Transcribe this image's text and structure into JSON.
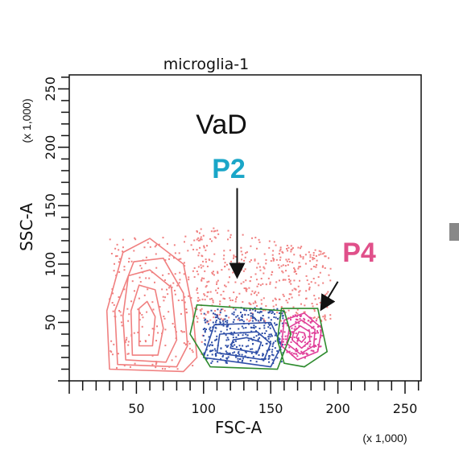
{
  "chart_data": {
    "type": "scatter",
    "title": "microglia-1",
    "xlabel": "FSC-A",
    "ylabel": "SSC-A",
    "x_scale_note": "(x 1,000)",
    "y_scale_note": "(x 1,000)",
    "xlim": [
      0,
      262
    ],
    "ylim": [
      0,
      262
    ],
    "x_ticks": [
      50,
      100,
      150,
      200,
      250
    ],
    "y_ticks": [
      50,
      100,
      150,
      200,
      250
    ],
    "grid": false,
    "annotations": {
      "condition": "VaD",
      "p2": "P2",
      "p4": "P4"
    },
    "colors": {
      "main": "#f08080",
      "p2": "#2f4fa8",
      "p4": "#e0409a",
      "gate": "#2e8b2e",
      "p2_label": "#1aa6c8",
      "p4_label": "#e0508a"
    },
    "populations": [
      {
        "name": "",
        "color": "#f08080",
        "center": [
          55,
          55
        ],
        "contours": [
          [
            [
              30,
              10
            ],
            [
              85,
              8
            ],
            [
              95,
              20
            ],
            [
              92,
              60
            ],
            [
              85,
              100
            ],
            [
              60,
              122
            ],
            [
              40,
              110
            ],
            [
              28,
              60
            ]
          ],
          [
            [
              36,
              14
            ],
            [
              80,
              12
            ],
            [
              88,
              30
            ],
            [
              85,
              75
            ],
            [
              70,
              105
            ],
            [
              48,
              102
            ],
            [
              34,
              60
            ]
          ],
          [
            [
              42,
              18
            ],
            [
              72,
              16
            ],
            [
              80,
              35
            ],
            [
              76,
              80
            ],
            [
              60,
              95
            ],
            [
              44,
              90
            ],
            [
              40,
              55
            ]
          ],
          [
            [
              47,
              22
            ],
            [
              66,
              22
            ],
            [
              70,
              45
            ],
            [
              64,
              78
            ],
            [
              52,
              82
            ],
            [
              46,
              60
            ]
          ],
          [
            [
              52,
              30
            ],
            [
              62,
              30
            ],
            [
              64,
              55
            ],
            [
              58,
              68
            ],
            [
              52,
              62
            ]
          ]
        ]
      },
      {
        "name": "P2",
        "color": "#2f4fa8",
        "center": [
          140,
          28
        ],
        "contours": [
          [
            [
              100,
              20
            ],
            [
              150,
              12
            ],
            [
              158,
              30
            ],
            [
              150,
              50
            ],
            [
              108,
              48
            ]
          ],
          [
            [
              110,
              24
            ],
            [
              145,
              18
            ],
            [
              150,
              32
            ],
            [
              140,
              42
            ],
            [
              112,
              40
            ]
          ],
          [
            [
              120,
              28
            ],
            [
              140,
              24
            ],
            [
              143,
              33
            ],
            [
              132,
              37
            ],
            [
              122,
              35
            ]
          ]
        ]
      },
      {
        "name": "P4",
        "color": "#e0409a",
        "center": [
          173,
          38
        ],
        "contours": [
          [
            [
              158,
              30
            ],
            [
              170,
              18
            ],
            [
              185,
              25
            ],
            [
              188,
              45
            ],
            [
              175,
              58
            ],
            [
              160,
              52
            ]
          ],
          [
            [
              162,
              32
            ],
            [
              172,
              23
            ],
            [
              182,
              30
            ],
            [
              183,
              44
            ],
            [
              173,
              52
            ],
            [
              164,
              46
            ]
          ],
          [
            [
              166,
              35
            ],
            [
              173,
              28
            ],
            [
              179,
              34
            ],
            [
              179,
              42
            ],
            [
              172,
              47
            ],
            [
              167,
              42
            ]
          ],
          [
            [
              169,
              37
            ],
            [
              173,
              33
            ],
            [
              176,
              37
            ],
            [
              175,
              41
            ],
            [
              171,
              42
            ]
          ]
        ]
      }
    ],
    "gates": [
      {
        "name": "P2",
        "vertices": [
          [
            95,
            65
          ],
          [
            160,
            60
          ],
          [
            165,
            40
          ],
          [
            155,
            10
          ],
          [
            105,
            12
          ],
          [
            90,
            40
          ]
        ]
      },
      {
        "name": "P4",
        "vertices": [
          [
            158,
            62
          ],
          [
            185,
            62
          ],
          [
            192,
            25
          ],
          [
            175,
            12
          ],
          [
            160,
            15
          ],
          [
            155,
            35
          ]
        ]
      }
    ],
    "arrows": [
      {
        "label": "P2",
        "from": [
          125,
          165
        ],
        "to": [
          125,
          90
        ]
      },
      {
        "label": "P4",
        "from": [
          200,
          85
        ],
        "to": [
          188,
          62
        ]
      }
    ]
  }
}
